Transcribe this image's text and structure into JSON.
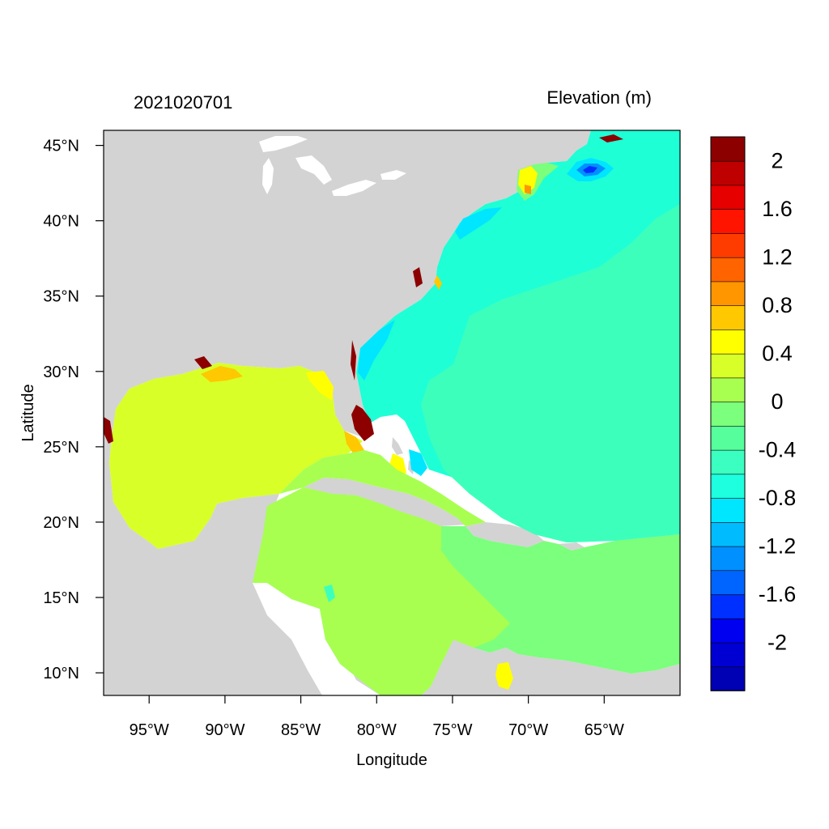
{
  "chart_data": {
    "type": "heatmap",
    "title_left": "2021020701",
    "title_right": "Elevation (m)",
    "xlabel": "Longitude",
    "ylabel": "Latitude",
    "xlim": [
      -98,
      -60
    ],
    "ylim": [
      8.5,
      46
    ],
    "x_ticks": [
      {
        "value": -95,
        "label": "95°W"
      },
      {
        "value": -90,
        "label": "90°W"
      },
      {
        "value": -85,
        "label": "85°W"
      },
      {
        "value": -80,
        "label": "80°W"
      },
      {
        "value": -75,
        "label": "75°W"
      },
      {
        "value": -70,
        "label": "70°W"
      },
      {
        "value": -65,
        "label": "65°W"
      }
    ],
    "y_ticks": [
      {
        "value": 45,
        "label": "45°N"
      },
      {
        "value": 40,
        "label": "40°N"
      },
      {
        "value": 35,
        "label": "35°N"
      },
      {
        "value": 30,
        "label": "30°N"
      },
      {
        "value": 25,
        "label": "25°N"
      },
      {
        "value": 20,
        "label": "20°N"
      },
      {
        "value": 15,
        "label": "15°N"
      },
      {
        "value": 10,
        "label": "10°N"
      }
    ],
    "colorbar": {
      "levels": [
        {
          "value": -2.2,
          "color": "#0000b4"
        },
        {
          "value": -2.0,
          "color": "#0000d2"
        },
        {
          "value": -1.8,
          "color": "#0000f0"
        },
        {
          "value": -1.6,
          "color": "#0030ff"
        },
        {
          "value": -1.4,
          "color": "#0064ff"
        },
        {
          "value": -1.2,
          "color": "#0090ff"
        },
        {
          "value": -1.0,
          "color": "#00bcff"
        },
        {
          "value": -0.8,
          "color": "#00e6ff"
        },
        {
          "value": -0.6,
          "color": "#1effe0"
        },
        {
          "value": -0.4,
          "color": "#3affc0"
        },
        {
          "value": -0.2,
          "color": "#56ff9c"
        },
        {
          "value": 0.0,
          "color": "#7cff7c"
        },
        {
          "value": 0.2,
          "color": "#a8ff50"
        },
        {
          "value": 0.4,
          "color": "#d8ff28"
        },
        {
          "value": 0.6,
          "color": "#ffff00"
        },
        {
          "value": 0.8,
          "color": "#ffc800"
        },
        {
          "value": 1.0,
          "color": "#ff9600"
        },
        {
          "value": 1.2,
          "color": "#ff6400"
        },
        {
          "value": 1.4,
          "color": "#ff3c00"
        },
        {
          "value": 1.6,
          "color": "#ff1400"
        },
        {
          "value": 1.8,
          "color": "#e60000"
        },
        {
          "value": 2.0,
          "color": "#be0000"
        },
        {
          "value": 2.2,
          "color": "#8c0000"
        }
      ],
      "tick_labels": [
        {
          "value": 2.0,
          "label": "2"
        },
        {
          "value": 1.6,
          "label": "1.6"
        },
        {
          "value": 1.2,
          "label": "1.2"
        },
        {
          "value": 0.8,
          "label": "0.8"
        },
        {
          "value": 0.4,
          "label": "0.4"
        },
        {
          "value": 0.0,
          "label": "0"
        },
        {
          "value": -0.4,
          "label": "-0.4"
        },
        {
          "value": -0.8,
          "label": "-0.8"
        },
        {
          "value": -1.2,
          "label": "-1.2"
        },
        {
          "value": -1.6,
          "label": "-1.6"
        },
        {
          "value": -2.0,
          "label": "-2"
        }
      ]
    },
    "land_color": "#d3d3d3"
  }
}
